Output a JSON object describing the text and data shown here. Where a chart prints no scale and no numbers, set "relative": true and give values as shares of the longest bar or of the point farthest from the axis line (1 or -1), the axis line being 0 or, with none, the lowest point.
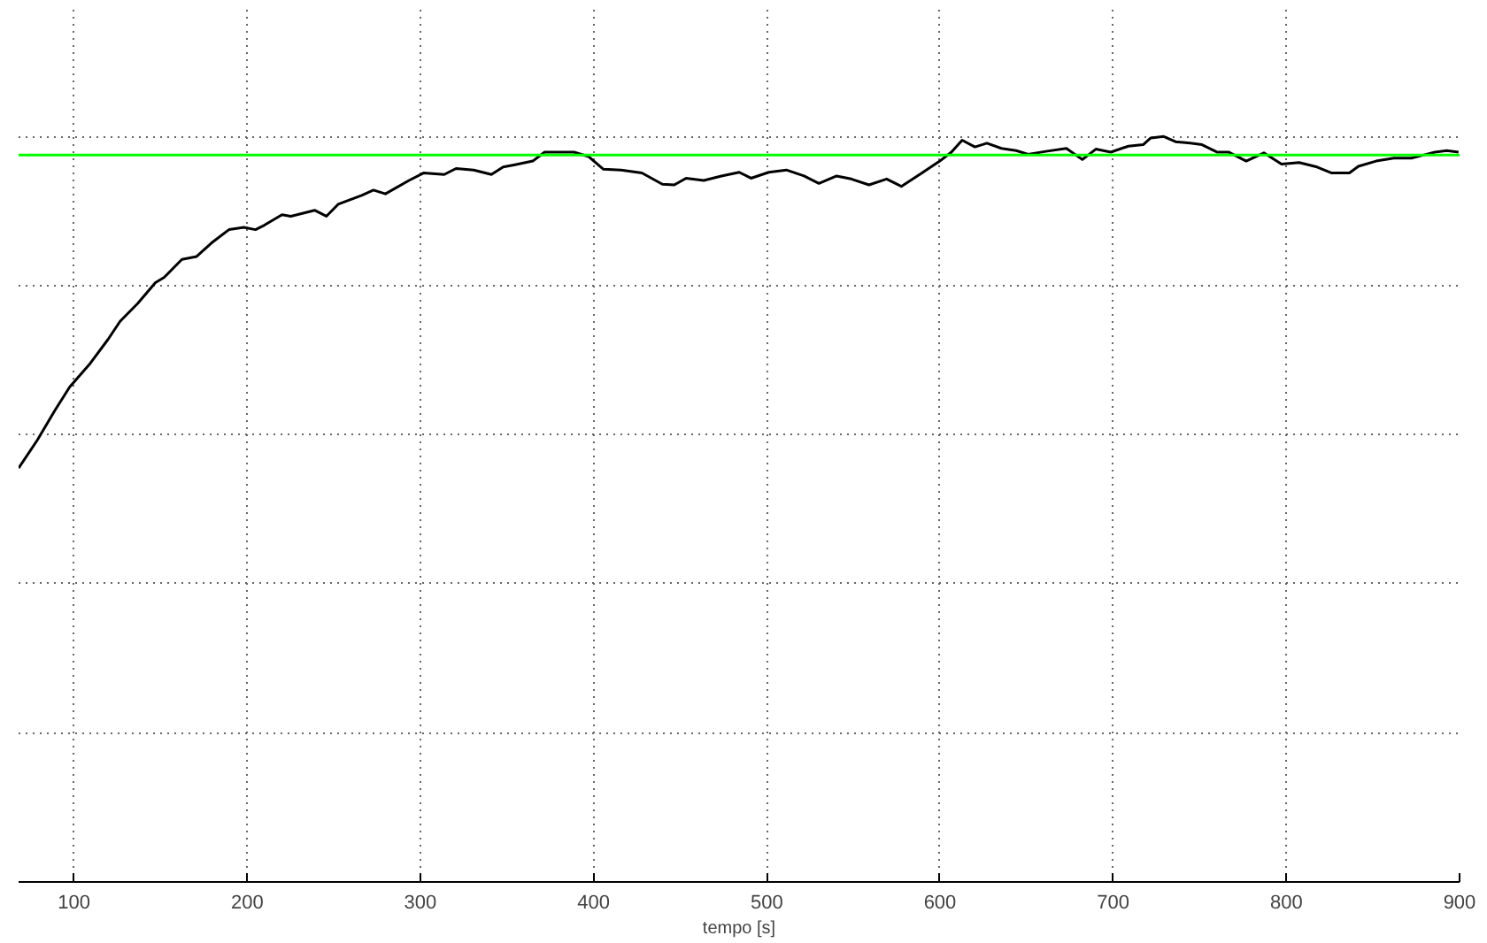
{
  "chart_data": {
    "type": "line",
    "xlabel": "tempo [s]",
    "relative": true,
    "x": [
      68,
      78.9,
      89.1,
      97.5,
      109.5,
      119.7,
      126.6,
      136.8,
      147,
      152.1,
      162.3,
      170.8,
      179.3,
      189.5,
      198.1,
      204.8,
      209.9,
      220.1,
      225.2,
      238.9,
      245.7,
      252.5,
      266.1,
      272.9,
      279.8,
      293.4,
      301.8,
      313.8,
      320.6,
      330.8,
      341,
      347.8,
      354.6,
      364.9,
      371.7,
      388.7,
      397.2,
      405.7,
      415.9,
      427.9,
      439.7,
      446.6,
      453.4,
      463.6,
      473.8,
      484.1,
      490.9,
      501.1,
      511.3,
      521.5,
      530.1,
      540.3,
      548.8,
      559,
      569.2,
      577.7,
      589.6,
      599.9,
      606.6,
      612.8,
      620.2,
      627.1,
      635.5,
      644,
      650.9,
      661.1,
      673,
      682.2,
      690,
      698.6,
      708.8,
      717.3,
      721.7,
      729.2,
      736,
      744.5,
      751.3,
      759.9,
      766.6,
      776.8,
      787,
      797.2,
      807.4,
      817.7,
      826.2,
      836.4,
      841.6,
      851.8,
      862,
      872.2,
      879,
      885.8,
      892.6,
      899.4
    ],
    "series": [
      {
        "color": "#000000",
        "values": [
          0.555,
          0.593,
          0.633,
          0.664,
          0.696,
          0.728,
          0.752,
          0.776,
          0.804,
          0.811,
          0.835,
          0.839,
          0.857,
          0.875,
          0.878,
          0.875,
          0.881,
          0.895,
          0.893,
          0.901,
          0.893,
          0.909,
          0.921,
          0.928,
          0.923,
          0.941,
          0.951,
          0.949,
          0.957,
          0.955,
          0.949,
          0.959,
          0.962,
          0.967,
          0.979,
          0.979,
          0.973,
          0.956,
          0.955,
          0.951,
          0.936,
          0.935,
          0.944,
          0.941,
          0.947,
          0.952,
          0.944,
          0.952,
          0.955,
          0.947,
          0.937,
          0.947,
          0.943,
          0.935,
          0.943,
          0.933,
          0.951,
          0.967,
          0.979,
          0.995,
          0.986,
          0.991,
          0.984,
          0.981,
          0.976,
          0.98,
          0.984,
          0.969,
          0.983,
          0.979,
          0.987,
          0.989,
          0.998,
          1.0,
          0.993,
          0.991,
          0.989,
          0.979,
          0.979,
          0.967,
          0.978,
          0.963,
          0.965,
          0.959,
          0.951,
          0.951,
          0.96,
          0.967,
          0.971,
          0.971,
          0.975,
          0.979,
          0.981,
          0.979
        ]
      }
    ],
    "xlim": [
      68,
      900
    ],
    "xticks": [
      100,
      200,
      300,
      400,
      500,
      600,
      700,
      800,
      900
    ],
    "ref_lines": [
      {
        "axis": "y",
        "value": 0.975,
        "color": "#00ff00"
      }
    ],
    "grid": true,
    "tick_labels": "x"
  }
}
